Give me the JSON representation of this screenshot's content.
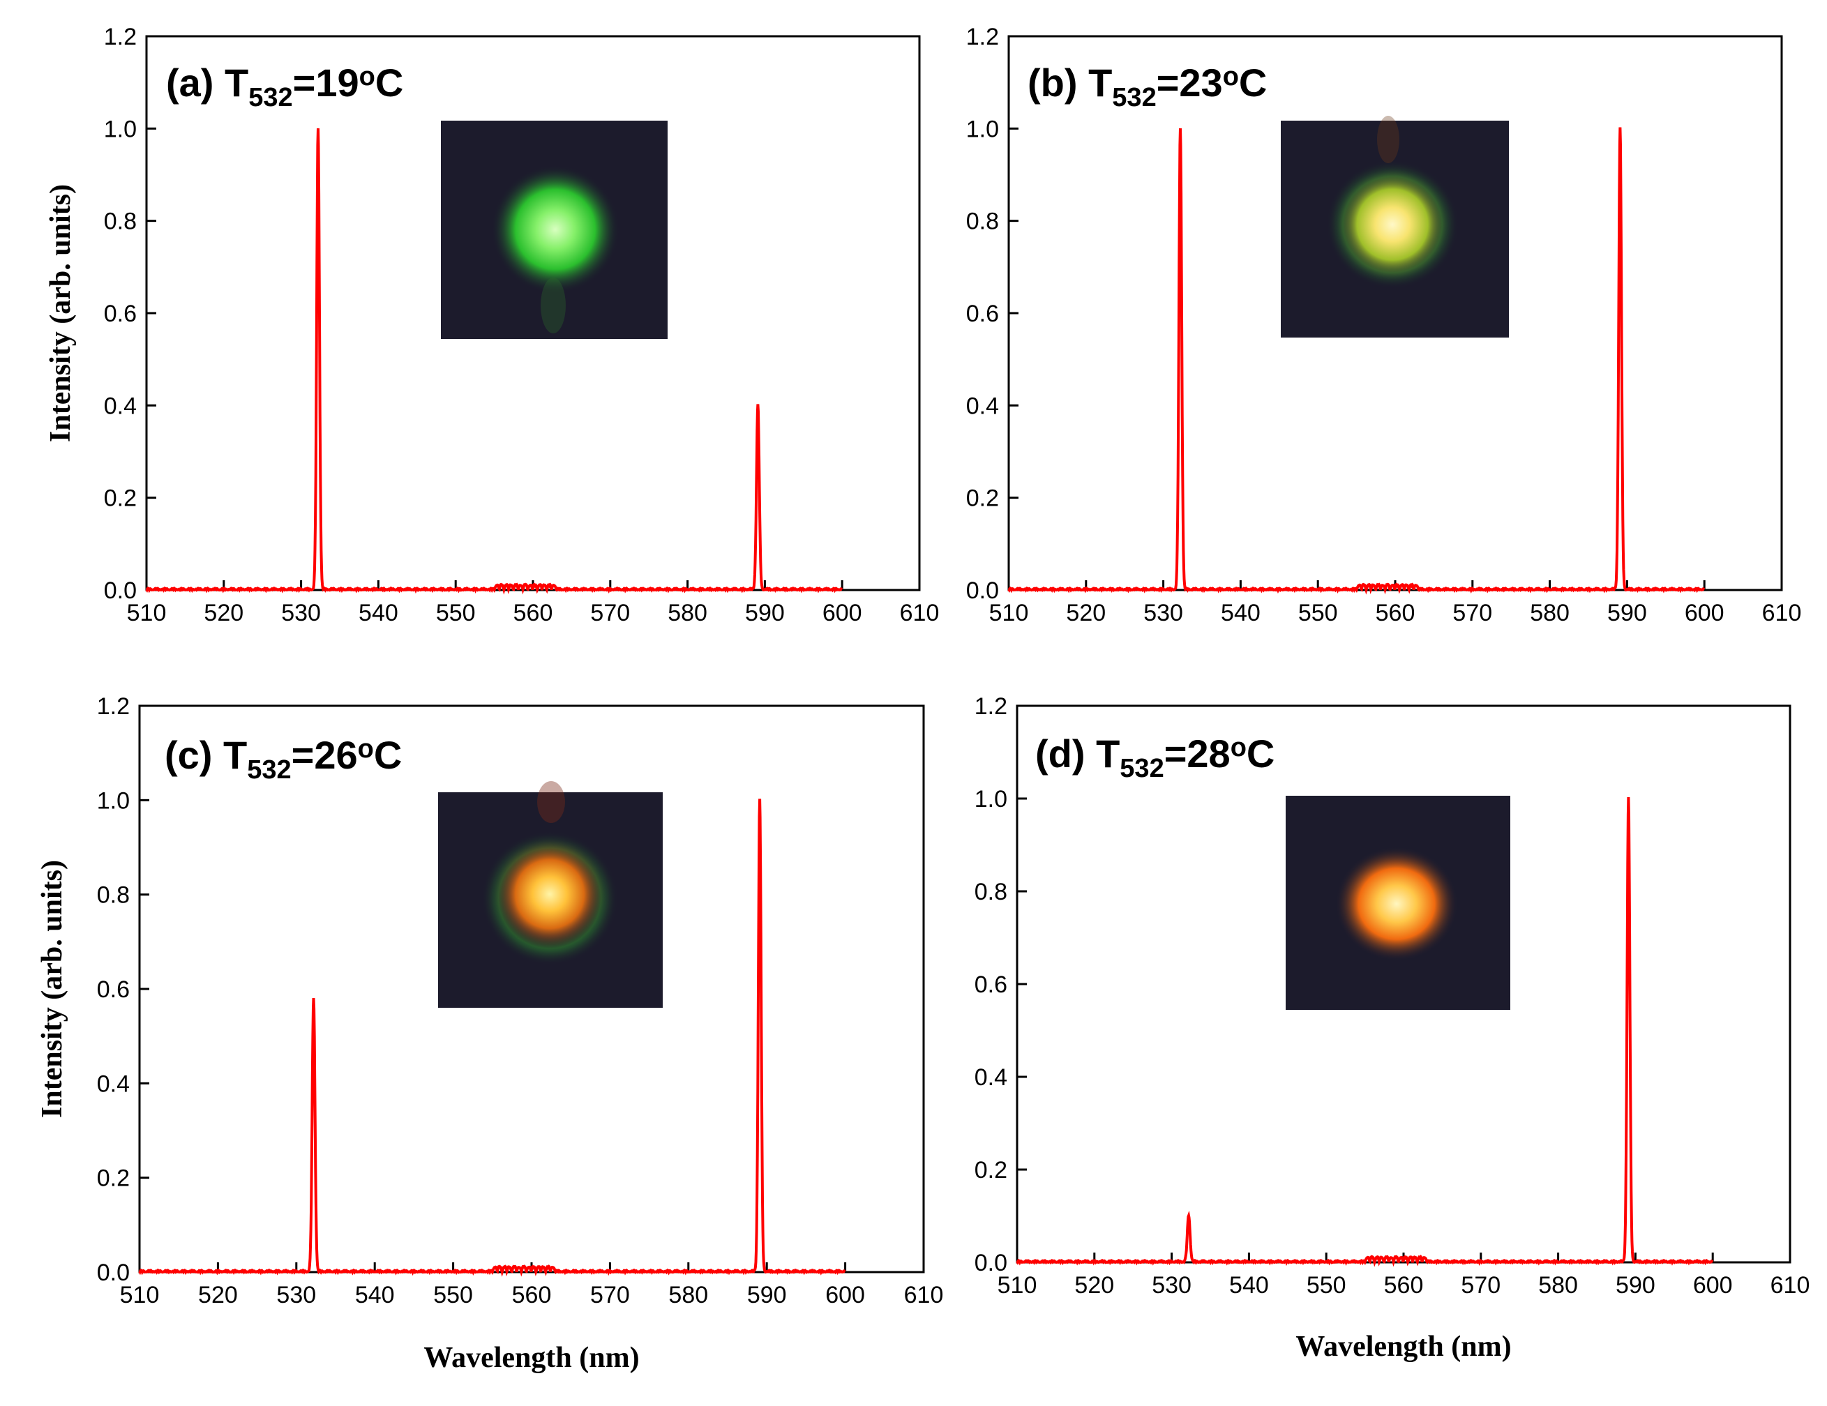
{
  "chart_data": [
    {
      "type": "line",
      "panel_label": "(a)",
      "title_main": "T",
      "title_sub": "532",
      "title_value": "=19",
      "title_deg": "o",
      "title_unit": "C",
      "xlabel": "",
      "ylabel": "Intensity (arb. units)",
      "xlim": [
        510,
        610
      ],
      "ylim": [
        0,
        1.2
      ],
      "xticks": [
        "510",
        "520",
        "530",
        "540",
        "550",
        "560",
        "570",
        "580",
        "590",
        "600",
        "610"
      ],
      "yticks": [
        "0.0",
        "0.2",
        "0.4",
        "0.6",
        "0.8",
        "1.0",
        "1.2"
      ],
      "series": [
        {
          "name": "spectrum",
          "color": "#ff0000",
          "x_end": 600,
          "peaks": [
            {
              "center": 532.2,
              "height": 1.0
            },
            {
              "center": 589.1,
              "height": 0.4
            }
          ]
        }
      ],
      "inset": {
        "description_colors": [
          "#b8ff90",
          "#39d634",
          "#1b1b2e"
        ]
      }
    },
    {
      "type": "line",
      "panel_label": "(b)",
      "title_main": "T",
      "title_sub": "532",
      "title_value": "=23",
      "title_deg": "o",
      "title_unit": "C",
      "xlabel": "",
      "ylabel": "",
      "xlim": [
        510,
        610
      ],
      "ylim": [
        0,
        1.2
      ],
      "xticks": [
        "510",
        "520",
        "530",
        "540",
        "550",
        "560",
        "570",
        "580",
        "590",
        "600",
        "610"
      ],
      "yticks": [
        "0.0",
        "0.2",
        "0.4",
        "0.6",
        "0.8",
        "1.0",
        "1.2"
      ],
      "series": [
        {
          "name": "spectrum",
          "color": "#ff0000",
          "x_end": 600,
          "peaks": [
            {
              "center": 532.2,
              "height": 1.0
            },
            {
              "center": 589.1,
              "height": 1.0
            }
          ]
        }
      ],
      "inset": {
        "description_colors": [
          "#fff2a0",
          "#d8c830",
          "#1b1b2e"
        ]
      }
    },
    {
      "type": "line",
      "panel_label": "(c)",
      "title_main": "T",
      "title_sub": "532",
      "title_value": "=26",
      "title_deg": "o",
      "title_unit": "C",
      "xlabel": "Wavelength (nm)",
      "ylabel": "Intensity (arb. units)",
      "xlim": [
        510,
        610
      ],
      "ylim": [
        0,
        1.2
      ],
      "xticks": [
        "510",
        "520",
        "530",
        "540",
        "550",
        "560",
        "570",
        "580",
        "590",
        "600",
        "610"
      ],
      "yticks": [
        "0.0",
        "0.2",
        "0.4",
        "0.6",
        "0.8",
        "1.0",
        "1.2"
      ],
      "series": [
        {
          "name": "spectrum",
          "color": "#ff0000",
          "x_end": 600,
          "peaks": [
            {
              "center": 532.2,
              "height": 0.58
            },
            {
              "center": 589.1,
              "height": 1.0
            }
          ]
        }
      ],
      "inset": {
        "description_colors": [
          "#ffee80",
          "#f08a10",
          "#1b1b2e"
        ]
      }
    },
    {
      "type": "line",
      "panel_label": "(d)",
      "title_main": "T",
      "title_sub": "532",
      "title_value": "=28",
      "title_deg": "o",
      "title_unit": "C",
      "xlabel": "Wavelength (nm)",
      "ylabel": "",
      "xlim": [
        510,
        610
      ],
      "ylim": [
        0,
        1.2
      ],
      "xticks": [
        "510",
        "520",
        "530",
        "540",
        "550",
        "560",
        "570",
        "580",
        "590",
        "600",
        "610"
      ],
      "yticks": [
        "0.0",
        "0.2",
        "0.4",
        "0.6",
        "0.8",
        "1.0",
        "1.2"
      ],
      "series": [
        {
          "name": "spectrum",
          "color": "#ff0000",
          "x_end": 600,
          "peaks": [
            {
              "center": 532.2,
              "height": 0.1
            },
            {
              "center": 589.1,
              "height": 1.0
            }
          ]
        }
      ],
      "inset": {
        "description_colors": [
          "#fff0a0",
          "#ff8a10",
          "#1b1b2e"
        ]
      }
    }
  ]
}
